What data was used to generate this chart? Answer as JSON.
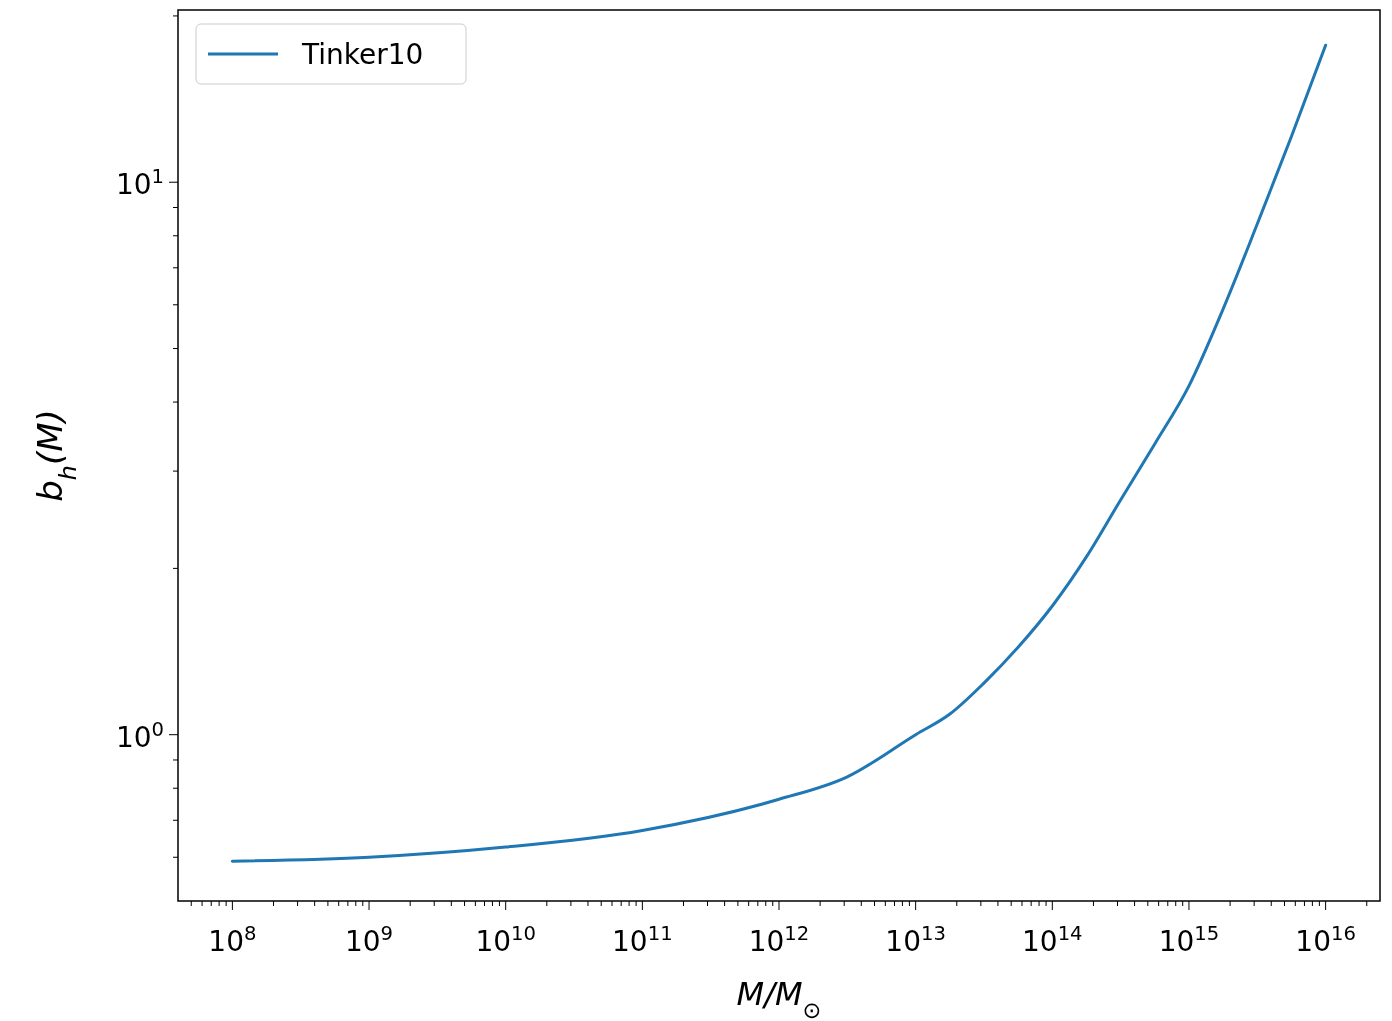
{
  "chart_data": {
    "type": "line",
    "xlabel": "M/M$_{⊙}$",
    "ylabel": "b$_{h}$(M)",
    "log": "xy",
    "legend": "top left",
    "grid": false,
    "xlim": [
      40000000.0,
      2.5e+16
    ],
    "ylim": [
      0.5,
      20.5
    ],
    "xticks": [
      {
        "value": 50000000.0,
        "label": null
      },
      {
        "value": 60000000.0,
        "label": null
      },
      {
        "value": 70000000.0,
        "label": null
      },
      {
        "value": 80000000.0,
        "label": null
      },
      {
        "value": 90000000.0,
        "label": null
      },
      {
        "value": 100000000.0,
        "label": "10$^{8}$"
      },
      {
        "value": 200000000.0,
        "label": null
      },
      {
        "value": 300000000.0,
        "label": null
      },
      {
        "value": 400000000.0,
        "label": null
      },
      {
        "value": 500000000.0,
        "label": null
      },
      {
        "value": 600000000.0,
        "label": null
      },
      {
        "value": 700000000.0,
        "label": null
      },
      {
        "value": 800000000.0,
        "label": null
      },
      {
        "value": 900000000.0,
        "label": null
      },
      {
        "value": 1000000000.0,
        "label": "10$^{9}$"
      },
      {
        "value": 2000000000.0,
        "label": null
      },
      {
        "value": 3000000000.0,
        "label": null
      },
      {
        "value": 4000000000.0,
        "label": null
      },
      {
        "value": 5000000000.0,
        "label": null
      },
      {
        "value": 6000000000.0,
        "label": null
      },
      {
        "value": 7000000000.0,
        "label": null
      },
      {
        "value": 8000000000.0,
        "label": null
      },
      {
        "value": 9000000000.0,
        "label": null
      },
      {
        "value": 10000000000.0,
        "label": "10$^{10}$"
      },
      {
        "value": 20000000000.0,
        "label": null
      },
      {
        "value": 30000000000.0,
        "label": null
      },
      {
        "value": 40000000000.0,
        "label": null
      },
      {
        "value": 50000000000.0,
        "label": null
      },
      {
        "value": 60000000000.0,
        "label": null
      },
      {
        "value": 70000000000.0,
        "label": null
      },
      {
        "value": 80000000000.0,
        "label": null
      },
      {
        "value": 90000000000.0,
        "label": null
      },
      {
        "value": 100000000000.0,
        "label": "10$^{11}$"
      },
      {
        "value": 200000000000.0,
        "label": null
      },
      {
        "value": 300000000000.0,
        "label": null
      },
      {
        "value": 400000000000.0,
        "label": null
      },
      {
        "value": 500000000000.0,
        "label": null
      },
      {
        "value": 600000000000.0,
        "label": null
      },
      {
        "value": 700000000000.0,
        "label": null
      },
      {
        "value": 800000000000.0,
        "label": null
      },
      {
        "value": 900000000000.0,
        "label": null
      },
      {
        "value": 1000000000000.0,
        "label": "10$^{12}$"
      },
      {
        "value": 2000000000000.0,
        "label": null
      },
      {
        "value": 3000000000000.0,
        "label": null
      },
      {
        "value": 4000000000000.0,
        "label": null
      },
      {
        "value": 5000000000000.0,
        "label": null
      },
      {
        "value": 6000000000000.0,
        "label": null
      },
      {
        "value": 7000000000000.0,
        "label": null
      },
      {
        "value": 8000000000000.0,
        "label": null
      },
      {
        "value": 9000000000000.0,
        "label": null
      },
      {
        "value": 10000000000000.0,
        "label": "10$^{13}$"
      },
      {
        "value": 20000000000000.0,
        "label": null
      },
      {
        "value": 30000000000000.0,
        "label": null
      },
      {
        "value": 40000000000000.0,
        "label": null
      },
      {
        "value": 50000000000000.0,
        "label": null
      },
      {
        "value": 60000000000000.0,
        "label": null
      },
      {
        "value": 70000000000000.0,
        "label": null
      },
      {
        "value": 80000000000000.0,
        "label": null
      },
      {
        "value": 90000000000000.0,
        "label": null
      },
      {
        "value": 100000000000000.0,
        "label": "10$^{14}$"
      },
      {
        "value": 200000000000000.0,
        "label": null
      },
      {
        "value": 300000000000000.0,
        "label": null
      },
      {
        "value": 400000000000000.0,
        "label": null
      },
      {
        "value": 500000000000000.0,
        "label": null
      },
      {
        "value": 600000000000000.0,
        "label": null
      },
      {
        "value": 700000000000000.0,
        "label": null
      },
      {
        "value": 800000000000000.0,
        "label": null
      },
      {
        "value": 900000000000000.0,
        "label": null
      },
      {
        "value": 1000000000000000.0,
        "label": "10$^{15}$"
      },
      {
        "value": 2000000000000000.0,
        "label": null
      },
      {
        "value": 3000000000000000.0,
        "label": null
      },
      {
        "value": 4000000000000000.0,
        "label": null
      },
      {
        "value": 5000000000000000.0,
        "label": null
      },
      {
        "value": 6000000000000000.0,
        "label": null
      },
      {
        "value": 7000000000000000.0,
        "label": null
      },
      {
        "value": 8000000000000000.0,
        "label": null
      },
      {
        "value": 9000000000000000.0,
        "label": null
      },
      {
        "value": 1e+16,
        "label": "10$^{16}$"
      },
      {
        "value": 2e+16,
        "label": null
      }
    ],
    "yticks": [
      {
        "value": 0.6,
        "label": null
      },
      {
        "value": 0.7,
        "label": null
      },
      {
        "value": 0.8,
        "label": null
      },
      {
        "value": 0.9,
        "label": null
      },
      {
        "value": 1,
        "label": "10$^{0}$"
      },
      {
        "value": 2,
        "label": null
      },
      {
        "value": 3,
        "label": null
      },
      {
        "value": 4,
        "label": null
      },
      {
        "value": 5,
        "label": null
      },
      {
        "value": 6,
        "label": null
      },
      {
        "value": 7,
        "label": null
      },
      {
        "value": 8,
        "label": null
      },
      {
        "value": 9,
        "label": null
      },
      {
        "value": 10,
        "label": "10$^{1}$"
      },
      {
        "value": 20,
        "label": null
      }
    ],
    "series": [
      {
        "name": "Tinker10",
        "color": "#1f77b4",
        "x": [
          100000000.0,
          1000000000.0,
          10000000000.0,
          100000000000.0,
          1000000000000.0,
          3160000000000.0,
          10000000000000.0,
          17800000000000.0,
          31600000000000.0,
          56200000000000.0,
          100000000000000.0,
          178000000000000.0,
          316000000000000.0,
          562000000000000.0,
          1000000000000000.0,
          1780000000000000.0,
          3160000000000000.0,
          5620000000000000.0,
          1e+16
        ],
        "values": [
          0.59,
          0.6,
          0.626,
          0.671,
          0.764,
          0.839,
          1.0,
          1.09,
          1.24,
          1.44,
          1.71,
          2.1,
          2.66,
          3.36,
          4.28,
          5.9,
          8.4,
          12.1,
          17.7
        ]
      }
    ]
  }
}
